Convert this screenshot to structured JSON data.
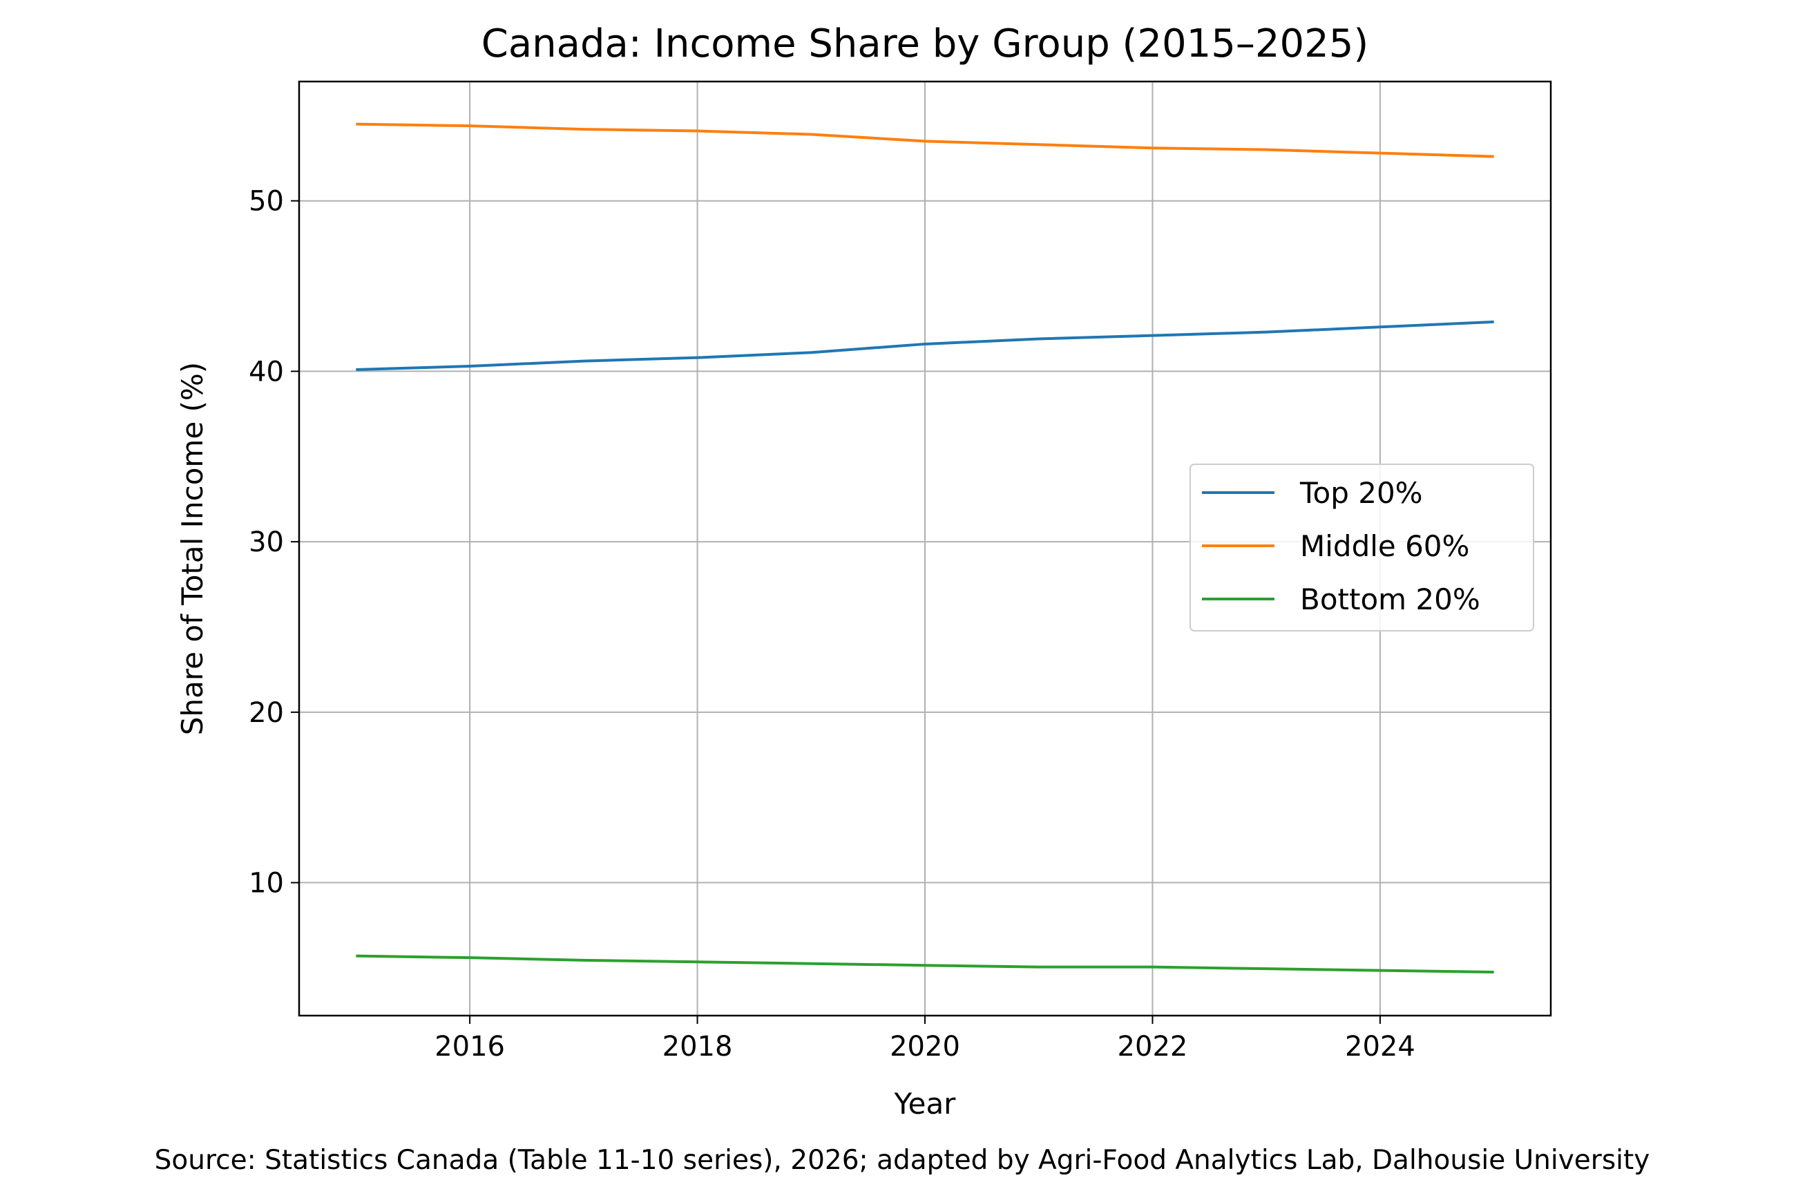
{
  "chart_data": {
    "type": "line",
    "title": "Canada: Income Share by Group (2015–2025)",
    "xlabel": "Year",
    "ylabel": "Share of Total Income (%)",
    "xlim": [
      2014.5,
      2025.5
    ],
    "ylim": [
      2.2,
      57
    ],
    "xticks": [
      2016,
      2018,
      2020,
      2022,
      2024
    ],
    "yticks": [
      10,
      20,
      30,
      40,
      50
    ],
    "grid": true,
    "legend_position": "center-right",
    "x": [
      2015,
      2016,
      2017,
      2018,
      2019,
      2020,
      2021,
      2022,
      2023,
      2024,
      2025
    ],
    "series": [
      {
        "name": "Top 20%",
        "color": "#1f77b4",
        "values": [
          40.1,
          40.3,
          40.6,
          40.8,
          41.1,
          41.6,
          41.9,
          42.1,
          42.3,
          42.6,
          42.9
        ]
      },
      {
        "name": "Middle 60%",
        "color": "#ff7f0e",
        "values": [
          54.5,
          54.4,
          54.2,
          54.1,
          53.9,
          53.5,
          53.3,
          53.1,
          53.0,
          52.8,
          52.6
        ]
      },
      {
        "name": "Bottom 20%",
        "color": "#2ca02c",
        "values": [
          5.7,
          5.6,
          5.45,
          5.35,
          5.25,
          5.15,
          5.05,
          5.05,
          4.95,
          4.85,
          4.75
        ]
      }
    ],
    "source": "Source: Statistics Canada (Table 11-10 series), 2026; adapted by Agri-Food Analytics Lab, Dalhousie University"
  }
}
